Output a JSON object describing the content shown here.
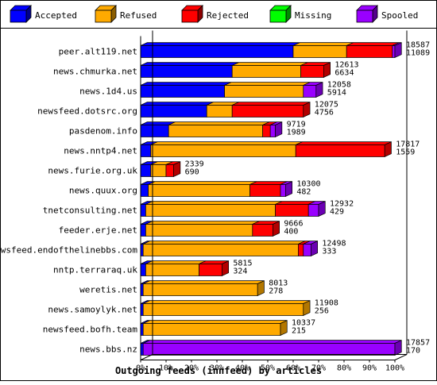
{
  "chart_data": {
    "type": "bar",
    "orientation": "horizontal",
    "stacked": true,
    "percent_scale": true,
    "title": "",
    "xlabel": "Outgoing feeds (innfeed) by articles",
    "ylabel": "",
    "xlim": [
      0,
      100
    ],
    "x_ticks": [
      "0%",
      "10%",
      "20%",
      "30%",
      "40%",
      "50%",
      "60%",
      "70%",
      "80%",
      "90%",
      "100%"
    ],
    "legend_position": "top",
    "grid": false,
    "categories": [
      "peer.alt119.net",
      "news.chmurka.net",
      "news.1d4.us",
      "newsfeed.dotsrc.org",
      "pasdenom.info",
      "news.nntp4.net",
      "news.furie.org.uk",
      "news.quux.org",
      "tnetconsulting.net",
      "feeder.erje.net",
      "newsfeed.endofthelinebbs.com",
      "nntp.terraraq.uk",
      "weretis.net",
      "news.samoylyk.net",
      "newsfeed.bofh.team",
      "news.bbs.nz"
    ],
    "totals_offered": [
      18587,
      12613,
      12058,
      12075,
      9719,
      17817,
      2339,
      10300,
      12932,
      9666,
      12498,
      5815,
      8013,
      11908,
      10337,
      17857
    ],
    "totals_accepted": [
      11089,
      6634,
      5914,
      4756,
      1989,
      1559,
      690,
      482,
      429,
      400,
      333,
      324,
      278,
      256,
      215,
      170
    ],
    "series": [
      {
        "name": "Accepted",
        "color": "#0000ff",
        "values": [
          60,
          36,
          33,
          26,
          11,
          4,
          4,
          3,
          2,
          2,
          1,
          2,
          1,
          1,
          1,
          1
        ]
      },
      {
        "name": "Refused",
        "color": "#ffaa00",
        "values": [
          21,
          27,
          31,
          10,
          37,
          57,
          6,
          40,
          51,
          42,
          61,
          21,
          45,
          63,
          54,
          0
        ]
      },
      {
        "name": "Rejected",
        "color": "#ff0000",
        "values": [
          18,
          9,
          0,
          28,
          3,
          35,
          3,
          12,
          13,
          8,
          2,
          9,
          0,
          0,
          0,
          0
        ]
      },
      {
        "name": "Missing",
        "color": "#00ff00",
        "values": [
          0,
          0,
          0,
          0,
          0,
          0,
          0,
          0,
          0,
          0,
          0,
          0,
          0,
          0,
          0,
          0
        ]
      },
      {
        "name": "Spooled",
        "color": "#9900ff",
        "values": [
          1,
          0,
          5,
          0,
          2,
          0,
          0,
          2,
          4,
          0,
          3,
          0,
          0,
          0,
          0,
          99
        ]
      }
    ]
  }
}
